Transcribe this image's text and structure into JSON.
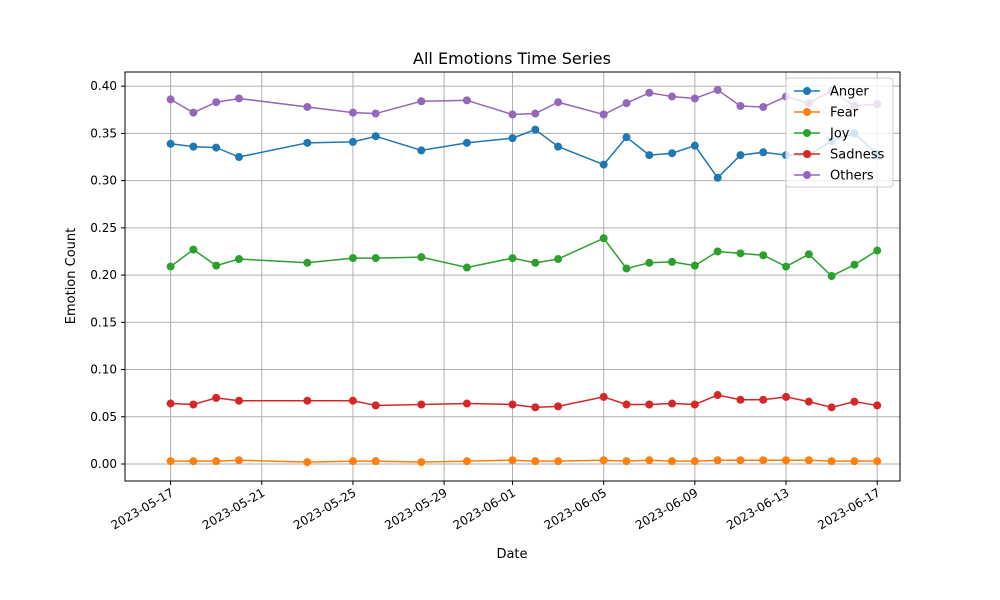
{
  "chart_data": {
    "type": "line",
    "title": "All Emotions Time Series",
    "xlabel": "Date",
    "ylabel": "Emotion Count",
    "x_tick_labels": [
      "2023-05-17",
      "2023-05-21",
      "2023-05-25",
      "2023-05-29",
      "2023-06-01",
      "2023-06-05",
      "2023-06-09",
      "2023-06-13",
      "2023-06-17"
    ],
    "y_tick_labels": [
      "0.00",
      "0.05",
      "0.10",
      "0.15",
      "0.20",
      "0.25",
      "0.30",
      "0.35",
      "0.40"
    ],
    "ylim": [
      -0.018,
      0.415
    ],
    "xlim": [
      "2023-05-15",
      "2023-06-18"
    ],
    "grid": true,
    "legend_position": "top-right",
    "x": [
      "2023-05-17",
      "2023-05-18",
      "2023-05-19",
      "2023-05-20",
      "2023-05-23",
      "2023-05-25",
      "2023-05-26",
      "2023-05-28",
      "2023-05-30",
      "2023-06-01",
      "2023-06-02",
      "2023-06-03",
      "2023-06-05",
      "2023-06-06",
      "2023-06-07",
      "2023-06-08",
      "2023-06-09",
      "2023-06-10",
      "2023-06-11",
      "2023-06-12",
      "2023-06-13",
      "2023-06-14",
      "2023-06-15",
      "2023-06-16",
      "2023-06-17"
    ],
    "series": [
      {
        "name": "Anger",
        "color": "#1f77b4",
        "values": [
          0.339,
          0.336,
          0.335,
          0.325,
          0.34,
          0.341,
          0.347,
          0.332,
          0.34,
          0.345,
          0.354,
          0.336,
          0.317,
          0.346,
          0.327,
          0.329,
          0.337,
          0.303,
          0.327,
          0.33,
          0.327,
          0.327,
          0.342,
          0.35,
          0.328
        ]
      },
      {
        "name": "Fear",
        "color": "#ff7f0e",
        "values": [
          0.003,
          0.003,
          0.003,
          0.004,
          0.002,
          0.003,
          0.003,
          0.002,
          0.003,
          0.004,
          0.003,
          0.003,
          0.004,
          0.003,
          0.004,
          0.003,
          0.003,
          0.004,
          0.004,
          0.004,
          0.004,
          0.004,
          0.003,
          0.003,
          0.003
        ]
      },
      {
        "name": "Joy",
        "color": "#2ca02c",
        "values": [
          0.209,
          0.227,
          0.21,
          0.217,
          0.213,
          0.218,
          0.218,
          0.219,
          0.208,
          0.218,
          0.213,
          0.217,
          0.239,
          0.207,
          0.213,
          0.214,
          0.21,
          0.225,
          0.223,
          0.221,
          0.209,
          0.222,
          0.199,
          0.211,
          0.226
        ]
      },
      {
        "name": "Sadness",
        "color": "#d62728",
        "values": [
          0.064,
          0.063,
          0.07,
          0.067,
          0.067,
          0.067,
          0.062,
          0.063,
          0.064,
          0.063,
          0.06,
          0.061,
          0.071,
          0.063,
          0.063,
          0.064,
          0.063,
          0.073,
          0.068,
          0.068,
          0.071,
          0.066,
          0.06,
          0.066,
          0.062
        ]
      },
      {
        "name": "Others",
        "color": "#9467bd",
        "values": [
          0.386,
          0.372,
          0.383,
          0.387,
          0.378,
          0.372,
          0.371,
          0.384,
          0.385,
          0.37,
          0.371,
          0.383,
          0.37,
          0.382,
          0.393,
          0.389,
          0.387,
          0.396,
          0.379,
          0.378,
          0.389,
          0.382,
          0.395,
          0.379,
          0.381
        ]
      }
    ]
  }
}
